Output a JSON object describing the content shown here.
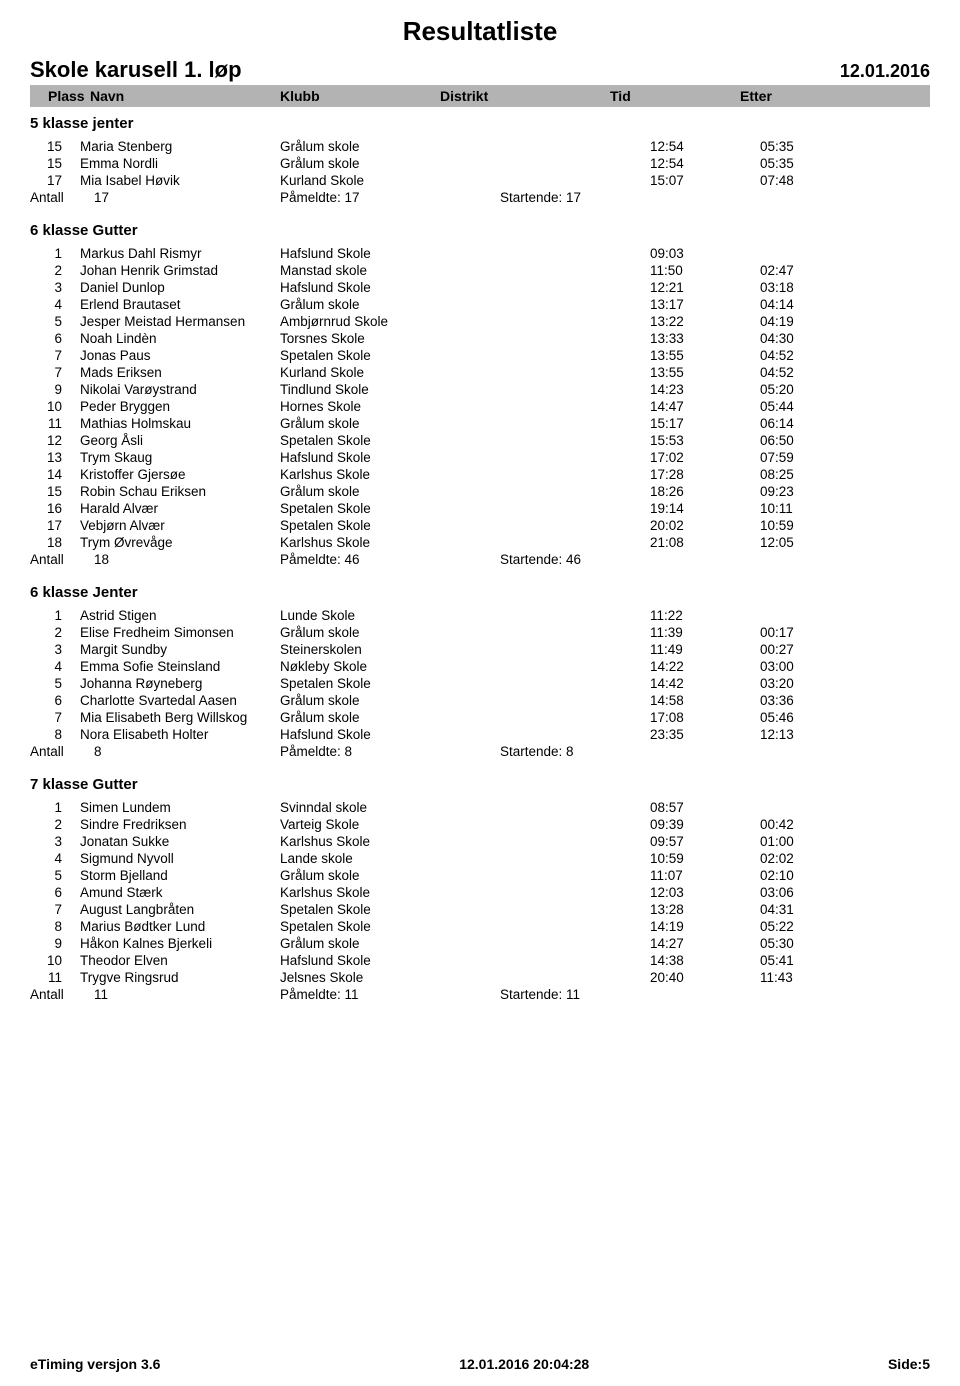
{
  "doc_title": "Resultatliste",
  "event_name": "Skole karusell 1. løp",
  "event_date": "12.01.2016",
  "column_headers": {
    "plass": "Plass",
    "navn": "Navn",
    "klubb": "Klubb",
    "distrikt": "Distrikt",
    "tid": "Tid",
    "etter": "Etter"
  },
  "summary_labels": {
    "antall": "Antall",
    "pameldte": "Påmeldte:",
    "startende": "Startende:"
  },
  "sections": [
    {
      "title": "5 klasse jenter",
      "rows": [
        {
          "plass": "15",
          "navn": "Maria Stenberg",
          "klubb": "Grålum skole",
          "tid": "12:54",
          "etter": "05:35"
        },
        {
          "plass": "15",
          "navn": "Emma Nordli",
          "klubb": "Grålum skole",
          "tid": "12:54",
          "etter": "05:35"
        },
        {
          "plass": "17",
          "navn": "Mia Isabel Høvik",
          "klubb": "Kurland Skole",
          "tid": "15:07",
          "etter": "07:48"
        }
      ],
      "summary": {
        "antall": "17",
        "pameldte": "17",
        "startende": "17"
      }
    },
    {
      "title": "6 klasse Gutter",
      "rows": [
        {
          "plass": "1",
          "navn": "Markus Dahl Rismyr",
          "klubb": "Hafslund Skole",
          "tid": "09:03",
          "etter": ""
        },
        {
          "plass": "2",
          "navn": "Johan Henrik Grimstad",
          "klubb": "Manstad skole",
          "tid": "11:50",
          "etter": "02:47"
        },
        {
          "plass": "3",
          "navn": "Daniel Dunlop",
          "klubb": "Hafslund Skole",
          "tid": "12:21",
          "etter": "03:18"
        },
        {
          "plass": "4",
          "navn": "Erlend Brautaset",
          "klubb": "Grålum skole",
          "tid": "13:17",
          "etter": "04:14"
        },
        {
          "plass": "5",
          "navn": "Jesper Meistad Hermansen",
          "klubb": "Ambjørnrud Skole",
          "tid": "13:22",
          "etter": "04:19"
        },
        {
          "plass": "6",
          "navn": "Noah Lindèn",
          "klubb": "Torsnes Skole",
          "tid": "13:33",
          "etter": "04:30"
        },
        {
          "plass": "7",
          "navn": "Jonas Paus",
          "klubb": "Spetalen Skole",
          "tid": "13:55",
          "etter": "04:52"
        },
        {
          "plass": "7",
          "navn": "Mads Eriksen",
          "klubb": "Kurland Skole",
          "tid": "13:55",
          "etter": "04:52"
        },
        {
          "plass": "9",
          "navn": "Nikolai Varøystrand",
          "klubb": "Tindlund Skole",
          "tid": "14:23",
          "etter": "05:20"
        },
        {
          "plass": "10",
          "navn": "Peder Bryggen",
          "klubb": "Hornes Skole",
          "tid": "14:47",
          "etter": "05:44"
        },
        {
          "plass": "11",
          "navn": "Mathias Holmskau",
          "klubb": "Grålum skole",
          "tid": "15:17",
          "etter": "06:14"
        },
        {
          "plass": "12",
          "navn": "Georg Åsli",
          "klubb": "Spetalen Skole",
          "tid": "15:53",
          "etter": "06:50"
        },
        {
          "plass": "13",
          "navn": "Trym Skaug",
          "klubb": "Hafslund Skole",
          "tid": "17:02",
          "etter": "07:59"
        },
        {
          "plass": "14",
          "navn": "Kristoffer Gjersøe",
          "klubb": "Karlshus Skole",
          "tid": "17:28",
          "etter": "08:25"
        },
        {
          "plass": "15",
          "navn": "Robin Schau Eriksen",
          "klubb": "Grålum skole",
          "tid": "18:26",
          "etter": "09:23"
        },
        {
          "plass": "16",
          "navn": "Harald Alvær",
          "klubb": "Spetalen Skole",
          "tid": "19:14",
          "etter": "10:11"
        },
        {
          "plass": "17",
          "navn": "Vebjørn Alvær",
          "klubb": "Spetalen Skole",
          "tid": "20:02",
          "etter": "10:59"
        },
        {
          "plass": "18",
          "navn": "Trym Øvrevåge",
          "klubb": "Karlshus Skole",
          "tid": "21:08",
          "etter": "12:05"
        }
      ],
      "summary": {
        "antall": "18",
        "pameldte": "46",
        "startende": "46"
      }
    },
    {
      "title": "6 klasse Jenter",
      "rows": [
        {
          "plass": "1",
          "navn": "Astrid Stigen",
          "klubb": "Lunde Skole",
          "tid": "11:22",
          "etter": ""
        },
        {
          "plass": "2",
          "navn": "Elise Fredheim Simonsen",
          "klubb": "Grålum skole",
          "tid": "11:39",
          "etter": "00:17"
        },
        {
          "plass": "3",
          "navn": "Margit Sundby",
          "klubb": "Steinerskolen",
          "tid": "11:49",
          "etter": "00:27"
        },
        {
          "plass": "4",
          "navn": "Emma Sofie Steinsland",
          "klubb": "Nøkleby Skole",
          "tid": "14:22",
          "etter": "03:00"
        },
        {
          "plass": "5",
          "navn": "Johanna Røyneberg",
          "klubb": "Spetalen Skole",
          "tid": "14:42",
          "etter": "03:20"
        },
        {
          "plass": "6",
          "navn": "Charlotte Svartedal Aasen",
          "klubb": "Grålum skole",
          "tid": "14:58",
          "etter": "03:36"
        },
        {
          "plass": "7",
          "navn": "Mia Elisabeth Berg Willskog",
          "klubb": "Grålum skole",
          "tid": "17:08",
          "etter": "05:46"
        },
        {
          "plass": "8",
          "navn": "Nora Elisabeth Holter",
          "klubb": "Hafslund Skole",
          "tid": "23:35",
          "etter": "12:13"
        }
      ],
      "summary": {
        "antall": "8",
        "pameldte": "8",
        "startende": "8"
      }
    },
    {
      "title": "7 klasse Gutter",
      "rows": [
        {
          "plass": "1",
          "navn": "Simen Lundem",
          "klubb": "Svinndal skole",
          "tid": "08:57",
          "etter": ""
        },
        {
          "plass": "2",
          "navn": "Sindre Fredriksen",
          "klubb": "Varteig Skole",
          "tid": "09:39",
          "etter": "00:42"
        },
        {
          "plass": "3",
          "navn": "Jonatan Sukke",
          "klubb": "Karlshus Skole",
          "tid": "09:57",
          "etter": "01:00"
        },
        {
          "plass": "4",
          "navn": "Sigmund Nyvoll",
          "klubb": "Lande skole",
          "tid": "10:59",
          "etter": "02:02"
        },
        {
          "plass": "5",
          "navn": "Storm Bjelland",
          "klubb": "Grålum skole",
          "tid": "11:07",
          "etter": "02:10"
        },
        {
          "plass": "6",
          "navn": "Amund Stærk",
          "klubb": "Karlshus Skole",
          "tid": "12:03",
          "etter": "03:06"
        },
        {
          "plass": "7",
          "navn": "August Langbråten",
          "klubb": "Spetalen Skole",
          "tid": "13:28",
          "etter": "04:31"
        },
        {
          "plass": "8",
          "navn": "Marius Bødtker Lund",
          "klubb": "Spetalen Skole",
          "tid": "14:19",
          "etter": "05:22"
        },
        {
          "plass": "9",
          "navn": "Håkon Kalnes Bjerkeli",
          "klubb": "Grålum skole",
          "tid": "14:27",
          "etter": "05:30"
        },
        {
          "plass": "10",
          "navn": "Theodor Elven",
          "klubb": "Hafslund Skole",
          "tid": "14:38",
          "etter": "05:41"
        },
        {
          "plass": "11",
          "navn": "Trygve Ringsrud",
          "klubb": "Jelsnes Skole",
          "tid": "20:40",
          "etter": "11:43"
        }
      ],
      "summary": {
        "antall": "11",
        "pameldte": "11",
        "startende": "11"
      }
    }
  ],
  "footer": {
    "left": "eTiming versjon 3.6",
    "center": "12.01.2016 20:04:28",
    "right": "Side:5"
  }
}
